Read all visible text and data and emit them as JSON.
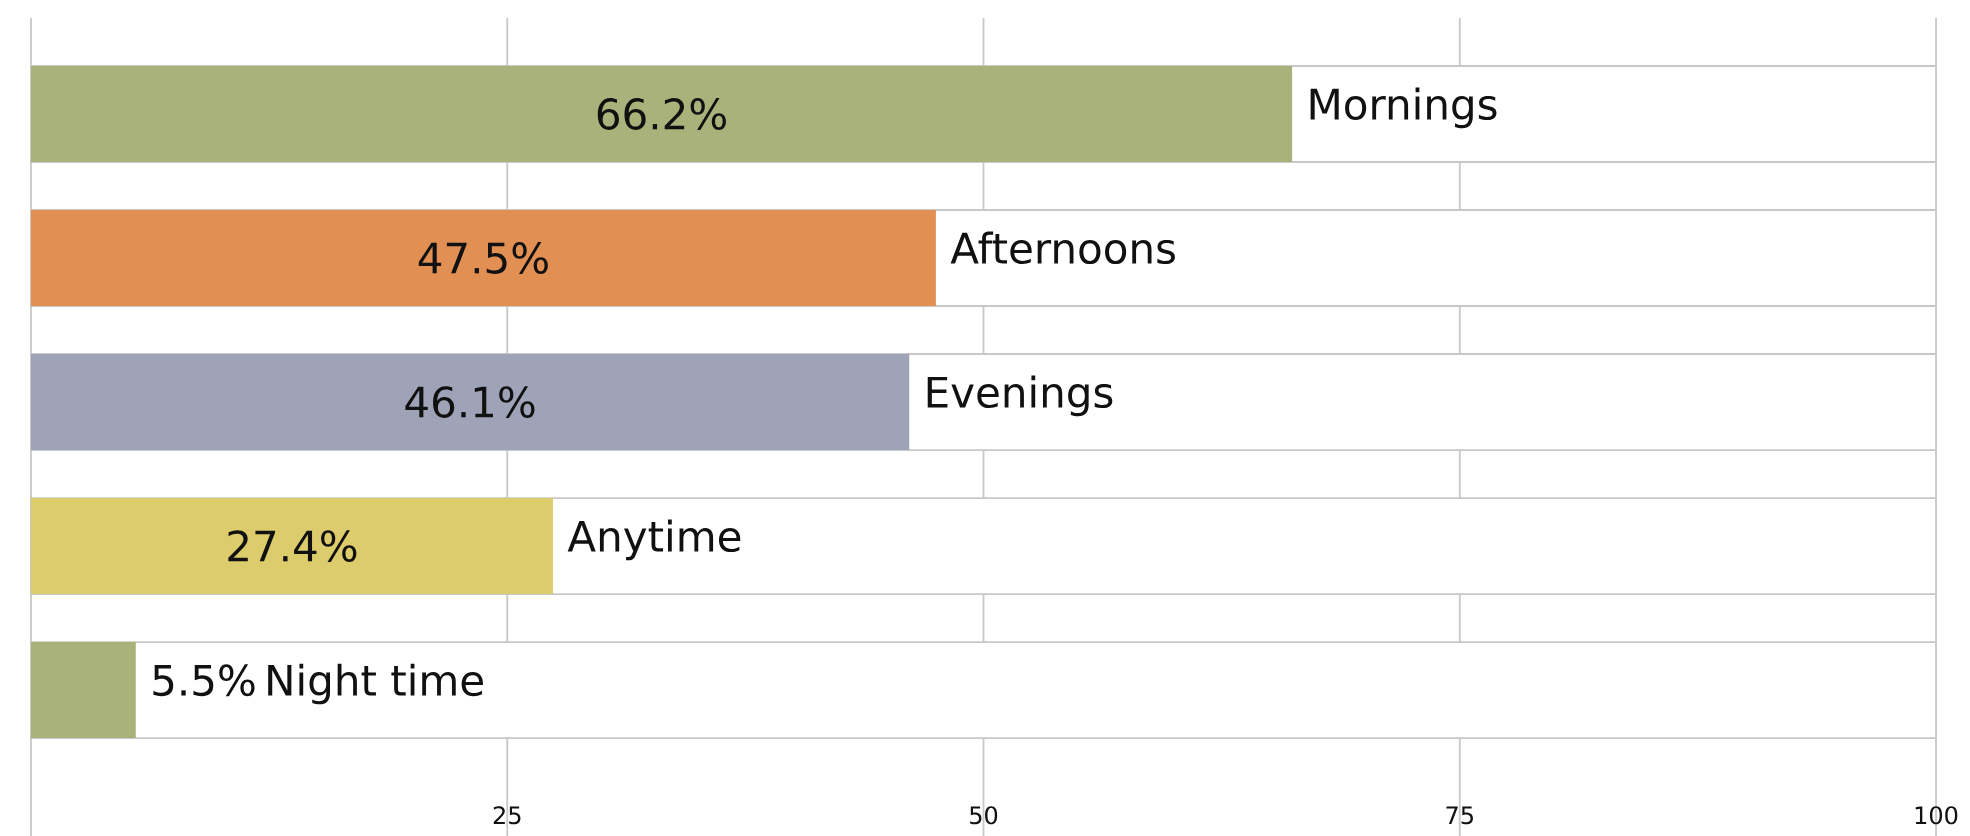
{
  "chart_data": {
    "type": "bar",
    "orientation": "horizontal",
    "categories": [
      "Mornings",
      "Afternoons",
      "Evenings",
      "Anytime",
      "Night time"
    ],
    "values": [
      66.2,
      47.5,
      46.1,
      27.4,
      5.5
    ],
    "value_labels": [
      "66.2%",
      "47.5%",
      "46.1%",
      "27.4%",
      "5.5%"
    ],
    "colors": [
      "#a9b27a",
      "#e18f53",
      "#9fa3b8",
      "#dccc6c",
      "#a9b27a"
    ],
    "xlim": [
      0,
      100
    ],
    "xticks": [
      25,
      50,
      75,
      100
    ],
    "grid": true
  }
}
